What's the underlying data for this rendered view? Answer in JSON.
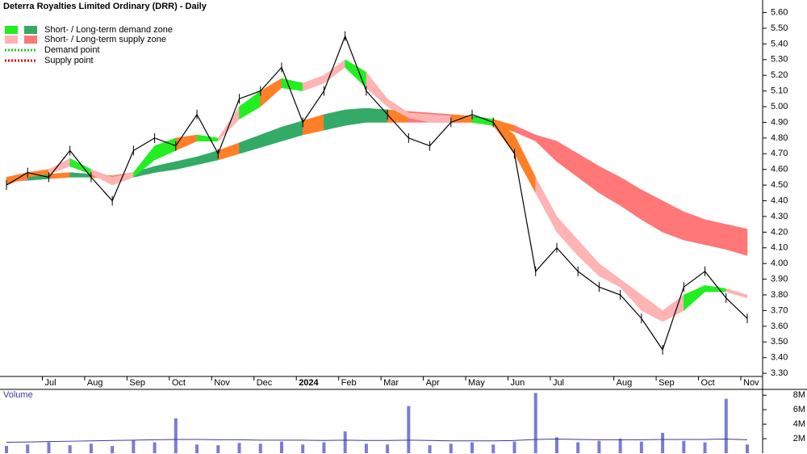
{
  "chart_data": {
    "type": "line",
    "title": "Deterra Royalties Limited Ordinary (DRR) - Daily",
    "categories": [
      null,
      null,
      "Jul",
      null,
      "Aug",
      null,
      "Sep",
      null,
      "Oct",
      null,
      "Nov",
      null,
      "Dec",
      null,
      "2024",
      null,
      "Feb",
      null,
      "Mar",
      null,
      "Apr",
      null,
      "May",
      null,
      "Jun",
      null,
      "Jul",
      null,
      null,
      "Aug",
      null,
      "Sep",
      null,
      "Oct",
      null,
      "Nov"
    ],
    "series": [
      {
        "name": "Close",
        "color": "#000000",
        "values": [
          4.5,
          4.58,
          4.55,
          4.72,
          4.55,
          4.4,
          4.72,
          4.8,
          4.75,
          4.95,
          4.7,
          5.05,
          5.1,
          5.25,
          4.9,
          5.1,
          5.45,
          5.1,
          4.95,
          4.8,
          4.75,
          4.9,
          4.95,
          4.9,
          4.7,
          3.95,
          4.1,
          3.95,
          3.85,
          3.8,
          3.65,
          3.45,
          3.85,
          3.95,
          3.78,
          3.65
        ]
      }
    ],
    "bands": [
      {
        "name": "Short-term",
        "demand_color": "#22ee22",
        "supply_color": "#ffb3b3",
        "lower": [
          4.5,
          4.55,
          4.57,
          4.62,
          4.57,
          4.5,
          4.55,
          4.66,
          4.72,
          4.78,
          4.78,
          4.92,
          5.0,
          5.12,
          5.1,
          5.15,
          5.25,
          5.12,
          5.0,
          4.93,
          4.9,
          4.9,
          4.9,
          4.88,
          4.7,
          4.45,
          4.2,
          4.05,
          3.92,
          3.85,
          3.7,
          3.63,
          3.7,
          3.82,
          3.82,
          3.78
        ],
        "upper": [
          4.55,
          4.58,
          4.6,
          4.67,
          4.6,
          4.55,
          4.58,
          4.75,
          4.8,
          4.82,
          4.8,
          5.0,
          5.1,
          5.18,
          5.15,
          5.2,
          5.3,
          5.22,
          5.05,
          4.96,
          4.95,
          4.94,
          4.93,
          4.92,
          4.82,
          4.55,
          4.3,
          4.15,
          4.0,
          3.9,
          3.8,
          3.7,
          3.8,
          3.86,
          3.84,
          3.8
        ]
      },
      {
        "name": "Long-term",
        "demand_color": "#33aa66",
        "supply_color": "#ff7777",
        "lower": [
          4.52,
          4.53,
          4.54,
          4.55,
          4.55,
          4.54,
          4.55,
          4.58,
          4.6,
          4.63,
          4.66,
          4.7,
          4.74,
          4.78,
          4.82,
          4.85,
          4.88,
          4.9,
          4.9,
          4.9,
          4.9,
          4.9,
          4.9,
          4.88,
          4.84,
          4.78,
          4.65,
          4.55,
          4.45,
          4.37,
          4.28,
          4.2,
          4.15,
          4.12,
          4.09,
          4.05
        ],
        "upper": [
          4.55,
          4.56,
          4.57,
          4.58,
          4.57,
          4.56,
          4.58,
          4.62,
          4.65,
          4.68,
          4.72,
          4.77,
          4.82,
          4.87,
          4.91,
          4.95,
          4.98,
          4.99,
          4.98,
          4.97,
          4.96,
          4.95,
          4.94,
          4.92,
          4.88,
          4.82,
          4.78,
          4.7,
          4.62,
          4.55,
          4.47,
          4.4,
          4.33,
          4.28,
          4.25,
          4.22
        ]
      }
    ],
    "neutral_color": "#ff7f27",
    "legend": [
      "Short- / Long-term demand zone",
      "Short- / Long-term supply zone",
      "Demand point",
      "Supply point"
    ],
    "demand_point_color": "#22cc22",
    "supply_point_color": "#dd0000",
    "ylim": [
      3.28,
      5.68
    ],
    "yticks": [
      {
        "value": 3.3,
        "label": "3.30"
      },
      {
        "value": 3.4,
        "label": "3.40"
      },
      {
        "value": 3.5,
        "label": "3.50"
      },
      {
        "value": 3.6,
        "label": "3.60"
      },
      {
        "value": 3.7,
        "label": "3.70"
      },
      {
        "value": 3.8,
        "label": "3.80"
      },
      {
        "value": 3.9,
        "label": "3.90"
      },
      {
        "value": 4.0,
        "label": "4.00"
      },
      {
        "value": 4.1,
        "label": "4.10"
      },
      {
        "value": 4.2,
        "label": "4.20"
      },
      {
        "value": 4.3,
        "label": "4.30"
      },
      {
        "value": 4.4,
        "label": "4.40"
      },
      {
        "value": 4.5,
        "label": "4.50"
      },
      {
        "value": 4.6,
        "label": "4.60"
      },
      {
        "value": 4.7,
        "label": "4.70"
      },
      {
        "value": 4.8,
        "label": "4.80"
      },
      {
        "value": 4.9,
        "label": "4.90"
      },
      {
        "value": 5.0,
        "label": "5.00"
      },
      {
        "value": 5.1,
        "label": "5.10"
      },
      {
        "value": 5.2,
        "label": "5.20"
      },
      {
        "value": 5.3,
        "label": "5.30"
      },
      {
        "value": 5.4,
        "label": "5.40"
      },
      {
        "value": 5.5,
        "label": "5.50"
      },
      {
        "value": 5.6,
        "label": "5.60"
      }
    ],
    "volume": {
      "label": "Volume",
      "color": "#7b7bd6",
      "avg_color": "#3a3a99",
      "values": [
        1000000,
        1200000,
        1500000,
        1100000,
        1300000,
        1000000,
        1800000,
        1500000,
        4800000,
        1200000,
        1100000,
        1400000,
        1300000,
        1600000,
        1200000,
        1500000,
        3000000,
        1300000,
        1200000,
        6500000,
        1100000,
        1300000,
        1500000,
        1200000,
        1600000,
        8300000,
        2200000,
        1500000,
        1700000,
        2000000,
        1600000,
        2800000,
        1700000,
        1500000,
        7500000,
        1200000
      ],
      "avg": [
        1500000,
        1550000,
        1600000,
        1650000,
        1700000,
        1750000,
        1800000,
        1850000,
        1900000,
        1900000,
        1850000,
        1850000,
        1800000,
        1800000,
        1800000,
        1750000,
        1800000,
        1750000,
        1750000,
        1800000,
        1750000,
        1700000,
        1700000,
        1700000,
        1750000,
        1900000,
        1950000,
        1900000,
        1850000,
        1850000,
        1850000,
        1900000,
        1900000,
        1900000,
        1950000,
        1850000
      ],
      "ylim": [
        0,
        8800000
      ],
      "yticks": [
        {
          "value": 2000000,
          "label": "2M"
        },
        {
          "value": 4000000,
          "label": "4M"
        },
        {
          "value": 6000000,
          "label": "6M"
        },
        {
          "value": 8000000,
          "label": "8M"
        }
      ]
    }
  }
}
